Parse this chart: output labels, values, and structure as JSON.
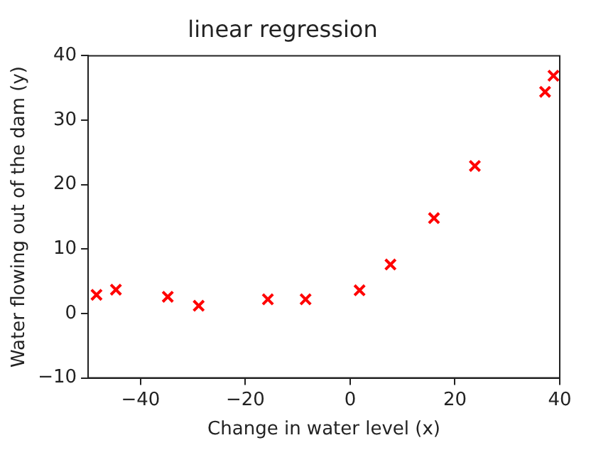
{
  "chart_data": {
    "type": "scatter",
    "title": "linear regression",
    "xlabel": "Change in water level (x)",
    "ylabel": "Water flowing out of the dam (y)",
    "x": [
      -48.4,
      -44.7,
      -34.8,
      -28.9,
      -15.7,
      -8.5,
      1.8,
      7.7,
      16.0,
      23.8,
      37.2,
      38.8
    ],
    "series": [
      {
        "color": "#ff0000",
        "values": [
          2.9,
          3.7,
          2.6,
          1.2,
          2.2,
          2.2,
          3.6,
          7.6,
          14.8,
          22.9,
          34.4,
          36.9
        ]
      }
    ],
    "xlim": [
      -50,
      40
    ],
    "xticks": [
      -40,
      -20,
      0,
      20,
      40
    ],
    "ylim": [
      -10,
      40
    ],
    "yticks": [
      -10,
      0,
      10,
      20,
      30,
      40
    ],
    "marker": "cross",
    "grid": false,
    "legend": false
  }
}
